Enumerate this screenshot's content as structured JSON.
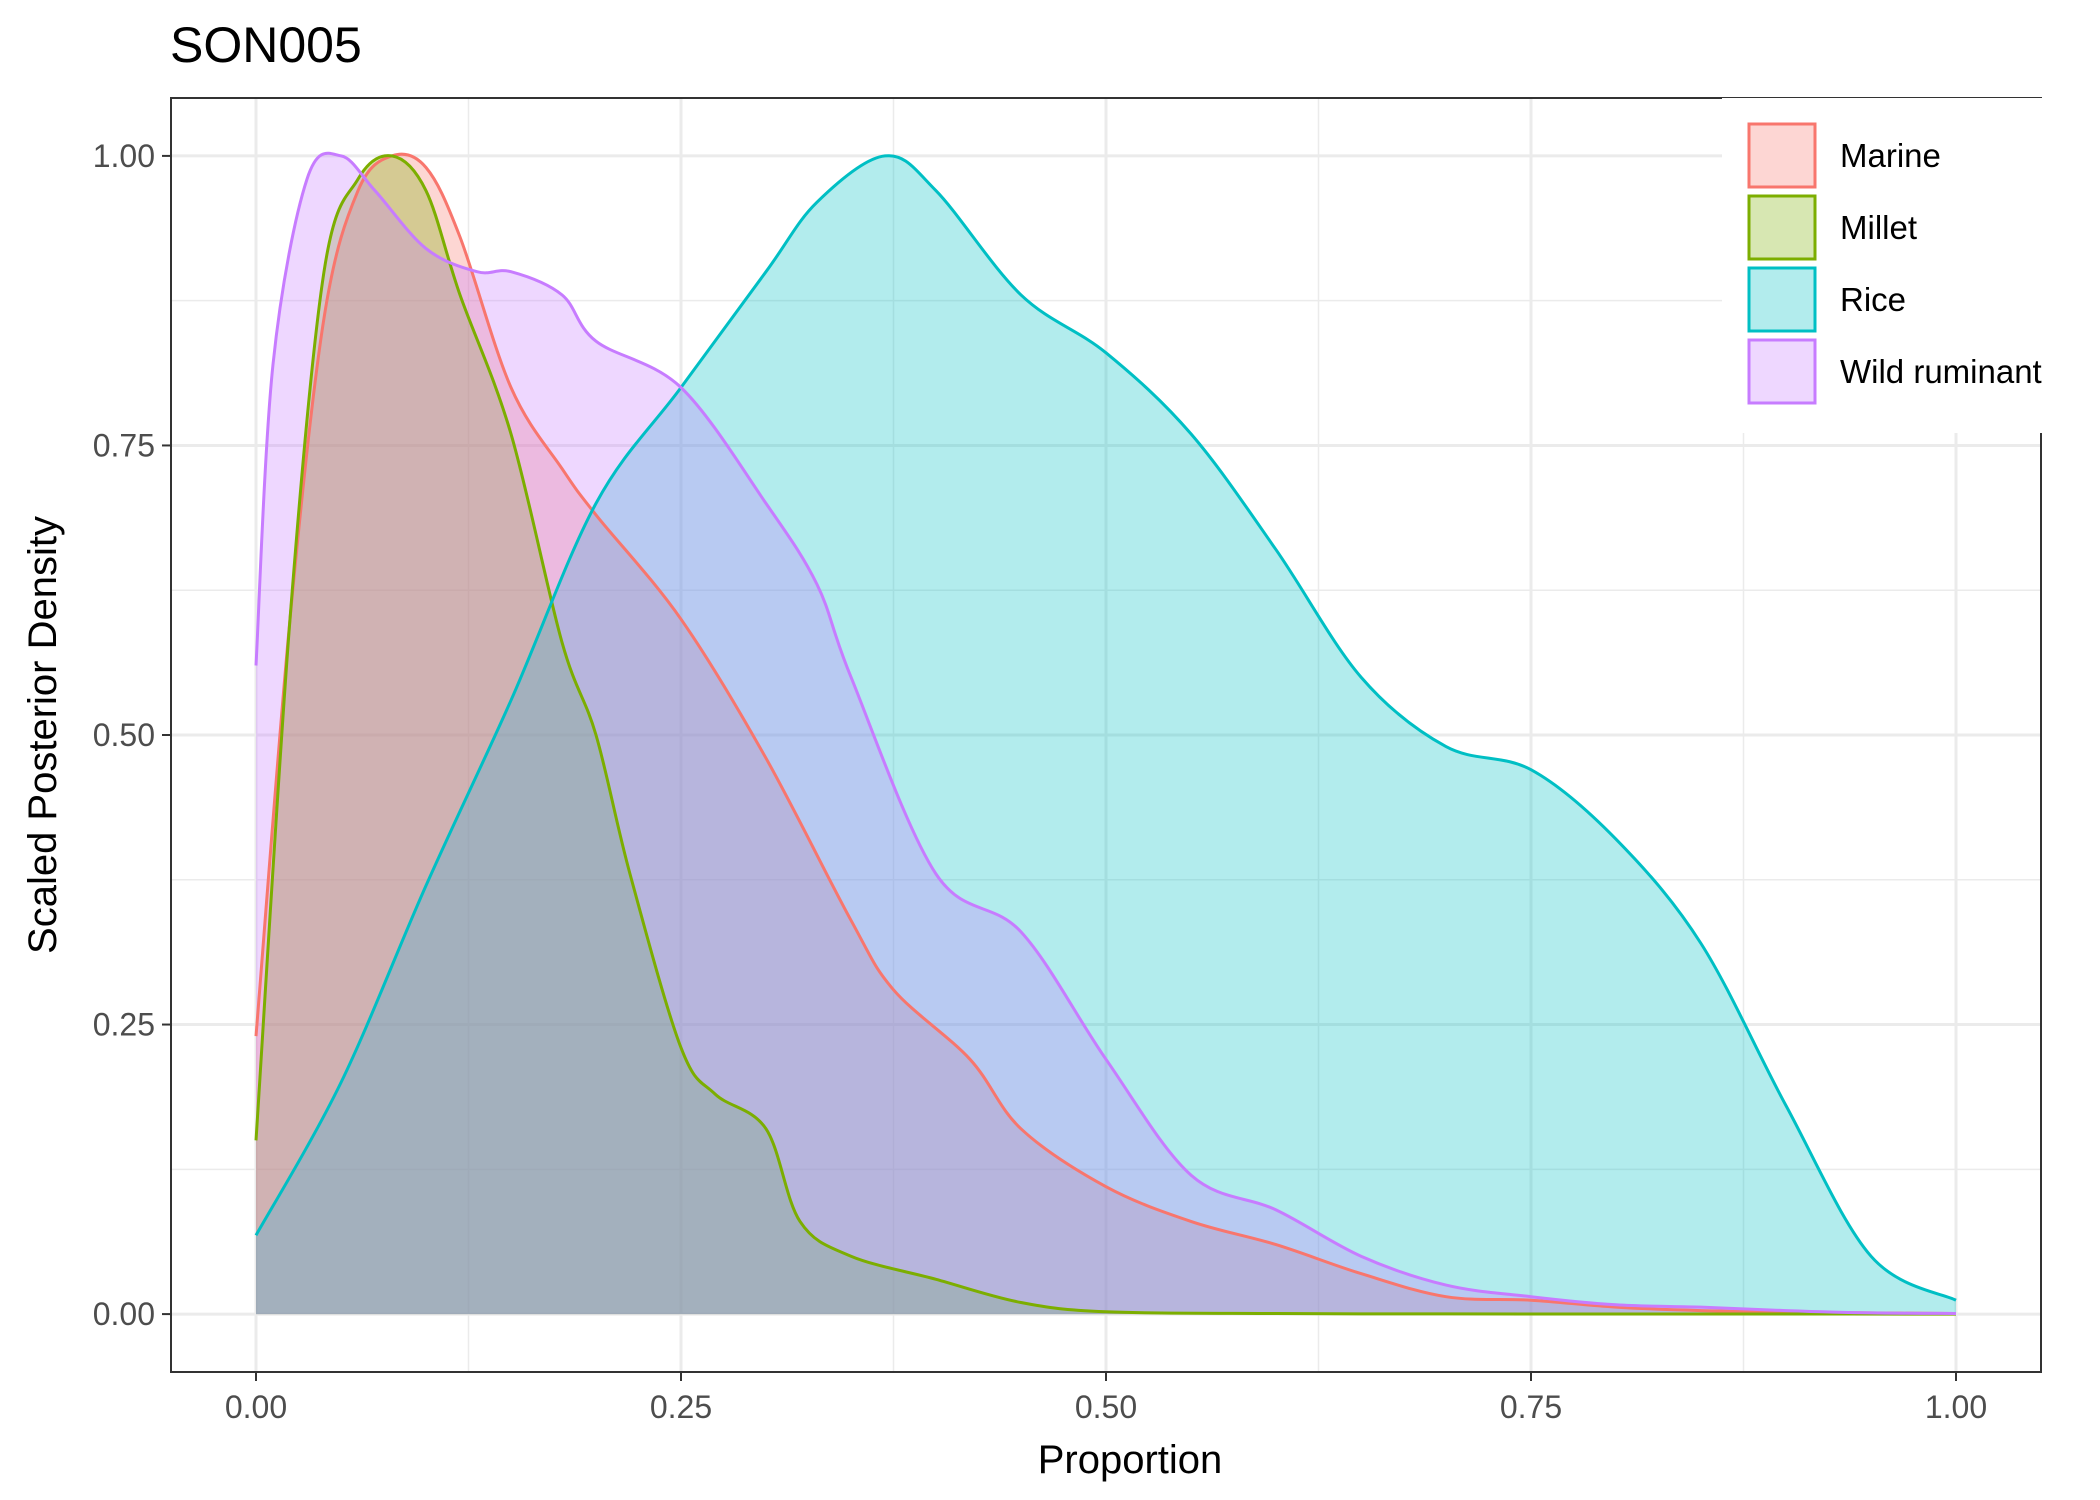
{
  "chart_data": {
    "type": "area",
    "title": "SON005",
    "xlabel": "Proportion",
    "ylabel": "Scaled Posterior Density",
    "xlim": [
      -0.05,
      1.05
    ],
    "ylim": [
      -0.05,
      1.05
    ],
    "x_ticks": [
      0,
      0.25,
      0.5,
      0.75,
      1
    ],
    "x_tick_labels": [
      "0.00",
      "0.25",
      "0.50",
      "0.75",
      "1.00"
    ],
    "y_ticks": [
      0,
      0.25,
      0.5,
      0.75,
      1
    ],
    "y_tick_labels": [
      "0.00",
      "0.25",
      "0.50",
      "0.75",
      "1.00"
    ],
    "grid": true,
    "legend_position": "top-right",
    "series": [
      {
        "name": "Marine",
        "color": "#F8766D",
        "x": [
          0,
          0.02,
          0.04,
          0.06,
          0.08,
          0.1,
          0.12,
          0.15,
          0.18,
          0.2,
          0.25,
          0.3,
          0.35,
          0.375,
          0.42,
          0.45,
          0.5,
          0.55,
          0.6,
          0.65,
          0.7,
          0.75,
          0.8,
          0.85,
          0.9,
          0.95,
          1
        ],
        "y": [
          0.24,
          0.6,
          0.86,
          0.97,
          1.0,
          0.99,
          0.93,
          0.8,
          0.73,
          0.69,
          0.6,
          0.48,
          0.34,
          0.28,
          0.22,
          0.16,
          0.11,
          0.08,
          0.06,
          0.035,
          0.015,
          0.012,
          0.006,
          0.003,
          0.002,
          0.001,
          0.0005
        ]
      },
      {
        "name": "Millet",
        "color": "#7CAE00",
        "x": [
          0,
          0.02,
          0.04,
          0.06,
          0.08,
          0.1,
          0.12,
          0.15,
          0.18,
          0.2,
          0.22,
          0.25,
          0.27,
          0.3,
          0.32,
          0.35,
          0.4,
          0.45,
          0.5,
          0.6,
          0.7,
          0.8,
          0.9,
          1
        ],
        "y": [
          0.15,
          0.6,
          0.9,
          0.98,
          1.0,
          0.97,
          0.88,
          0.76,
          0.58,
          0.5,
          0.38,
          0.23,
          0.19,
          0.16,
          0.08,
          0.05,
          0.03,
          0.01,
          0.002,
          0.0005,
          0.0002,
          0.0001,
          0.0001,
          0.0
        ]
      },
      {
        "name": "Rice",
        "color": "#00BFC4",
        "x": [
          0,
          0.05,
          0.1,
          0.15,
          0.2,
          0.25,
          0.3,
          0.33,
          0.37,
          0.4,
          0.45,
          0.5,
          0.55,
          0.6,
          0.65,
          0.7,
          0.75,
          0.8,
          0.85,
          0.9,
          0.95,
          1
        ],
        "y": [
          0.068,
          0.2,
          0.37,
          0.53,
          0.7,
          0.8,
          0.9,
          0.96,
          1.0,
          0.97,
          0.88,
          0.83,
          0.76,
          0.66,
          0.55,
          0.49,
          0.47,
          0.41,
          0.32,
          0.18,
          0.05,
          0.012
        ]
      },
      {
        "name": "Wild ruminant",
        "color": "#C77CFF",
        "x": [
          0,
          0.01,
          0.03,
          0.05,
          0.07,
          0.1,
          0.13,
          0.15,
          0.18,
          0.2,
          0.25,
          0.3,
          0.33,
          0.35,
          0.4,
          0.45,
          0.5,
          0.55,
          0.6,
          0.65,
          0.7,
          0.75,
          0.8,
          0.85,
          0.9,
          0.95,
          1
        ],
        "y": [
          0.56,
          0.82,
          0.98,
          1.0,
          0.97,
          0.92,
          0.9,
          0.9,
          0.88,
          0.84,
          0.8,
          0.7,
          0.63,
          0.55,
          0.38,
          0.33,
          0.22,
          0.12,
          0.09,
          0.05,
          0.025,
          0.015,
          0.008,
          0.006,
          0.003,
          0.001,
          0.0005
        ]
      }
    ]
  }
}
